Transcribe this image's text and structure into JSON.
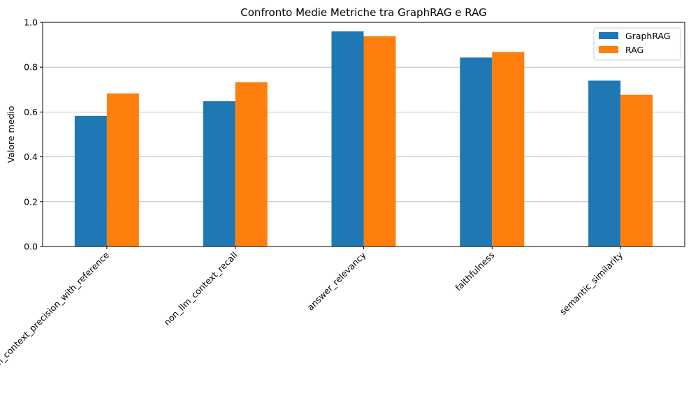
{
  "chart_data": {
    "type": "bar",
    "title": "Confronto Medie Metriche tra GraphRAG e RAG",
    "xlabel": "",
    "ylabel": "Valore medio",
    "ylim": [
      0,
      1.0
    ],
    "yticks": [
      0.0,
      0.2,
      0.4,
      0.6,
      0.8,
      1.0
    ],
    "ytick_labels": [
      "0.0",
      "0.2",
      "0.4",
      "0.6",
      "0.8",
      "1.0"
    ],
    "grid": "horizontal",
    "legend_position": "top-right",
    "categories": [
      "non_llm_context_precision_with_reference",
      "non_llm_context_recall",
      "answer_relevancy",
      "faithfulness",
      "semantic_similarity"
    ],
    "series": [
      {
        "name": "GraphRAG",
        "color": "#1f77b4",
        "values": [
          0.583,
          0.648,
          0.96,
          0.843,
          0.74
        ]
      },
      {
        "name": "RAG",
        "color": "#ff7f0e",
        "values": [
          0.683,
          0.733,
          0.938,
          0.868,
          0.677
        ]
      }
    ]
  }
}
